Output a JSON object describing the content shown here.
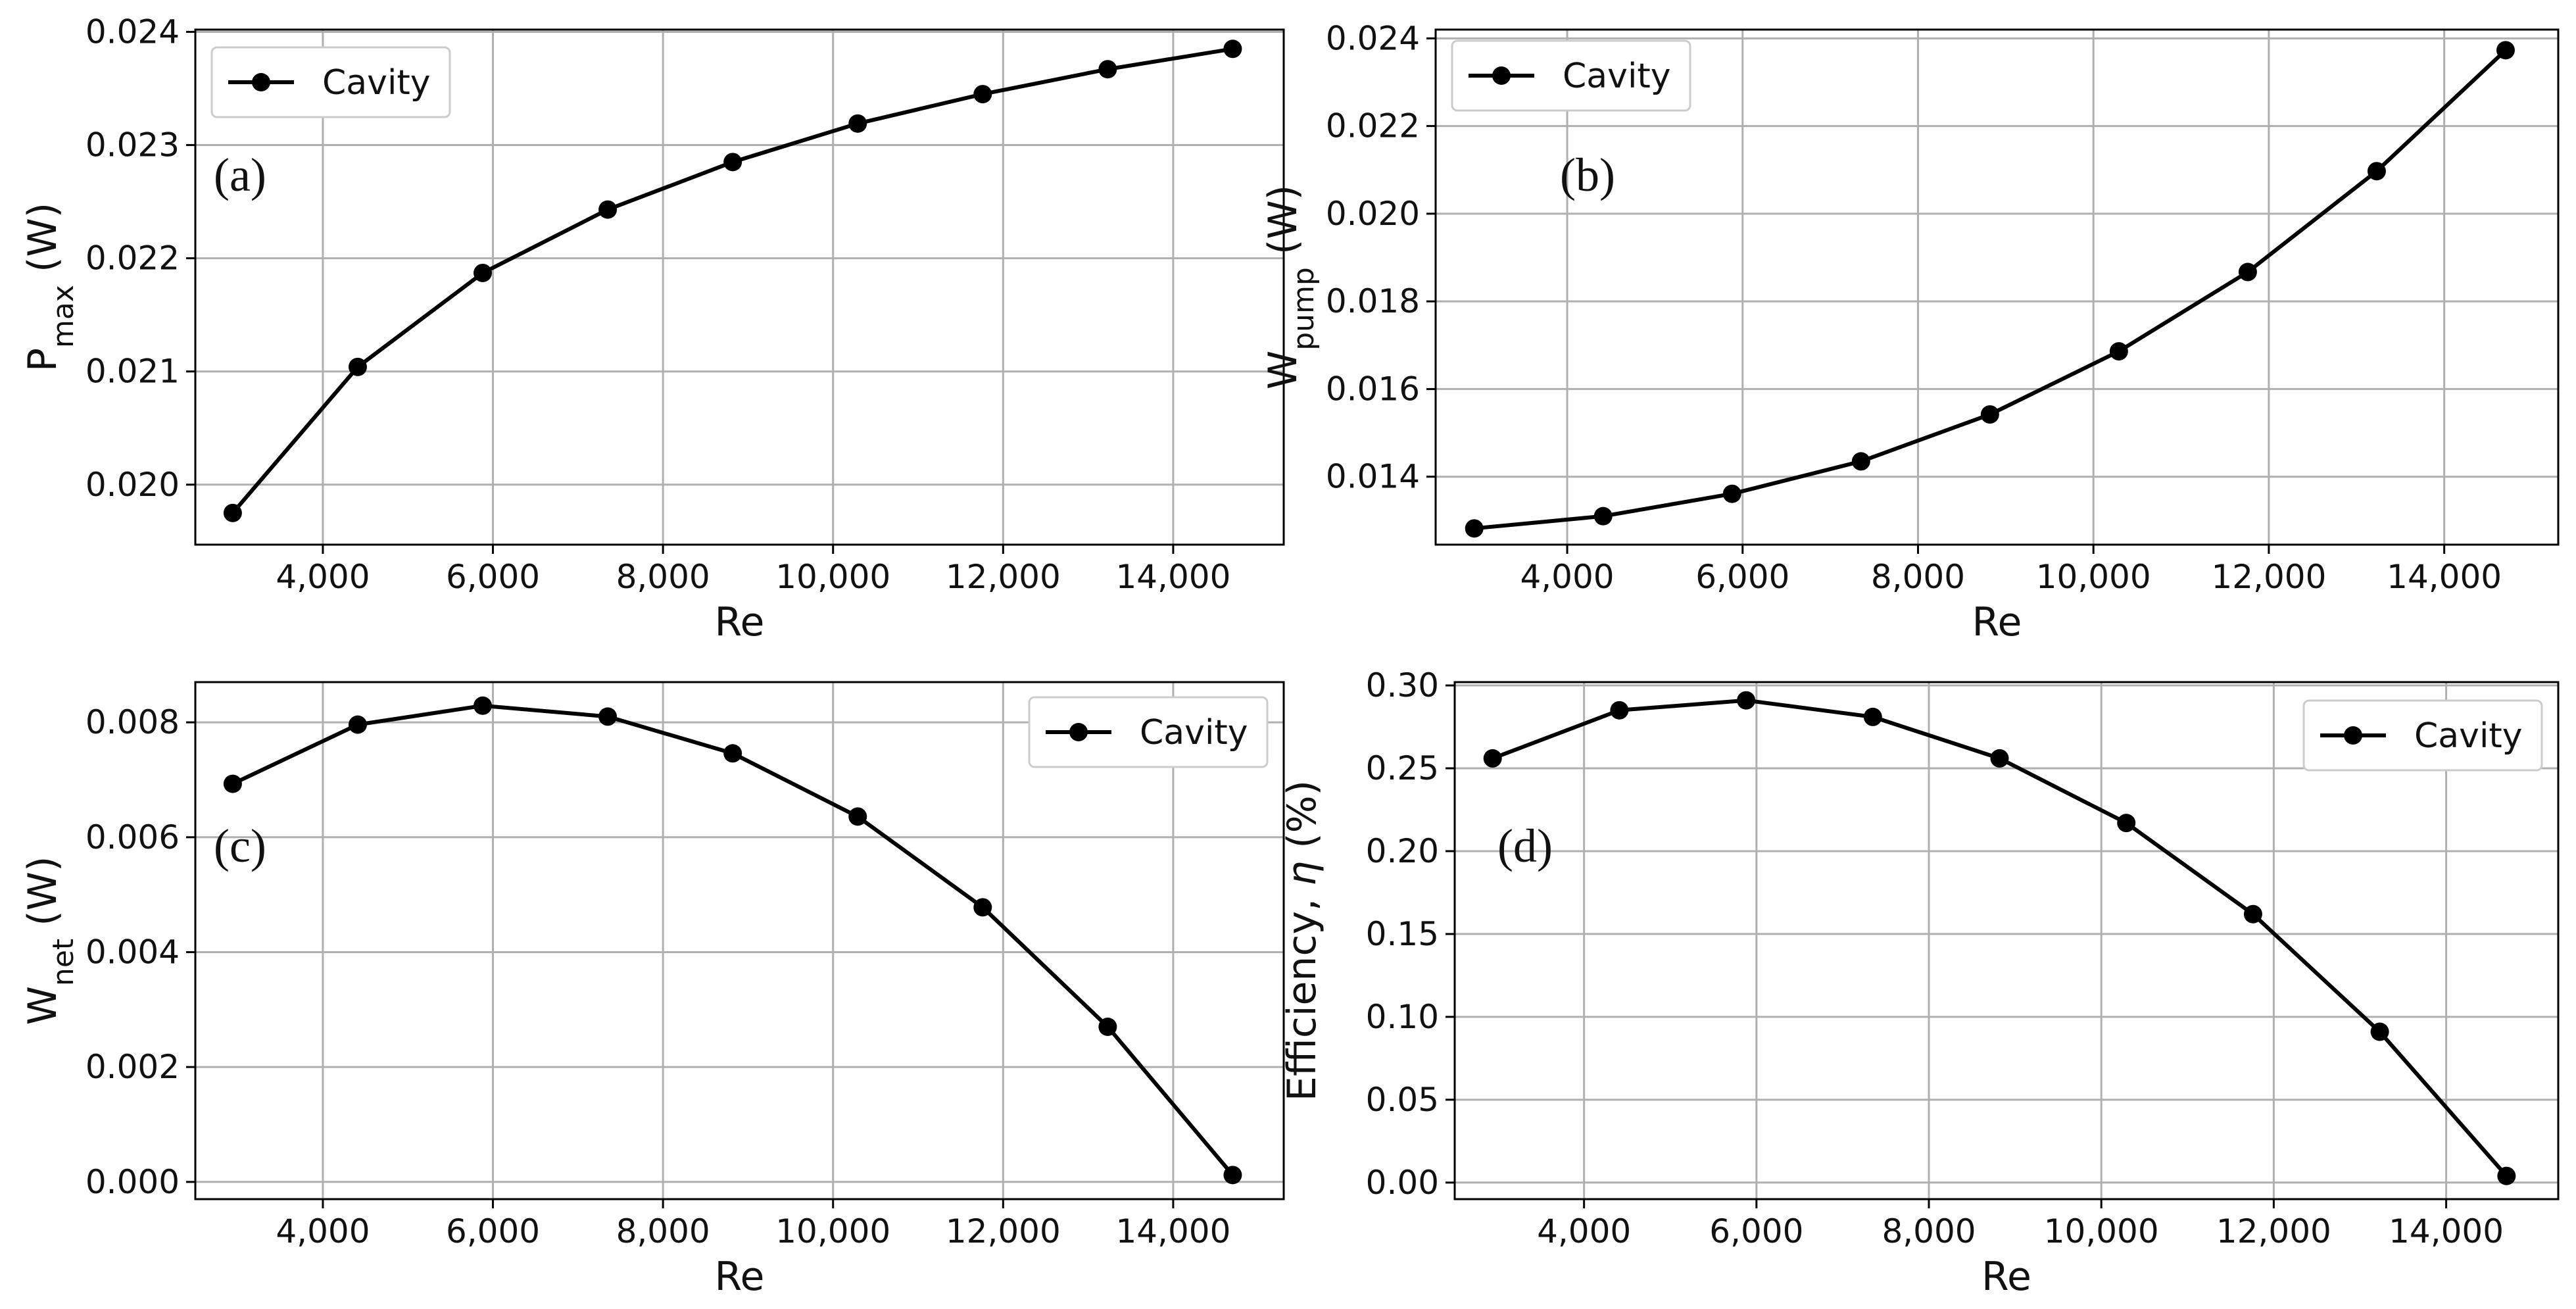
{
  "chart_data": [
    {
      "type": "line",
      "panel_label": "(a)",
      "title": "",
      "xlabel": "Re",
      "ylabel": "P",
      "ylabel_sub": "max",
      "ylabel_suffix": " (W)",
      "xlim": [
        2500,
        15300
      ],
      "ylim": [
        0.01947,
        0.02402
      ],
      "x_ticks": [
        4000,
        6000,
        8000,
        10000,
        12000,
        14000
      ],
      "x_tick_labels": [
        "4,000",
        "6,000",
        "8,000",
        "10,000",
        "12,000",
        "14,000"
      ],
      "y_ticks": [
        0.02,
        0.021,
        0.022,
        0.023,
        0.024
      ],
      "y_tick_labels": [
        "0.020",
        "0.021",
        "0.022",
        "0.023",
        "0.024"
      ],
      "grid": true,
      "legend_position": "top-left",
      "series": [
        {
          "name": "Cavity",
          "color": "#000000",
          "x": [
            2940,
            4410,
            5880,
            7350,
            8820,
            10290,
            11760,
            13230,
            14700
          ],
          "y": [
            0.01975,
            0.02104,
            0.02187,
            0.02243,
            0.02285,
            0.02319,
            0.02345,
            0.02367,
            0.02385
          ]
        }
      ]
    },
    {
      "type": "line",
      "panel_label": "(b)",
      "title": "",
      "xlabel": "Re",
      "ylabel": "W",
      "ylabel_sub": "pump",
      "ylabel_suffix": " (W)",
      "xlim": [
        2500,
        15300
      ],
      "ylim": [
        0.01245,
        0.0242
      ],
      "x_ticks": [
        4000,
        6000,
        8000,
        10000,
        12000,
        14000
      ],
      "x_tick_labels": [
        "4,000",
        "6,000",
        "8,000",
        "10,000",
        "12,000",
        "14,000"
      ],
      "y_ticks": [
        0.014,
        0.016,
        0.018,
        0.02,
        0.022,
        0.024
      ],
      "y_tick_labels": [
        "0.014",
        "0.016",
        "0.018",
        "0.020",
        "0.022",
        "0.024"
      ],
      "grid": true,
      "legend_position": "top-left",
      "series": [
        {
          "name": "Cavity",
          "color": "#000000",
          "x": [
            2940,
            4410,
            5880,
            7350,
            8820,
            10290,
            11760,
            13230,
            14700
          ],
          "y": [
            0.01282,
            0.0131,
            0.01361,
            0.01435,
            0.01542,
            0.01686,
            0.01867,
            0.02097,
            0.02373
          ]
        }
      ]
    },
    {
      "type": "line",
      "panel_label": "(c)",
      "title": "",
      "xlabel": "Re",
      "ylabel": "W",
      "ylabel_sub": "net",
      "ylabel_suffix": " (W)",
      "xlim": [
        2500,
        15300
      ],
      "ylim": [
        -0.0003,
        0.0087
      ],
      "x_ticks": [
        4000,
        6000,
        8000,
        10000,
        12000,
        14000
      ],
      "x_tick_labels": [
        "4,000",
        "6,000",
        "8,000",
        "10,000",
        "12,000",
        "14,000"
      ],
      "y_ticks": [
        0.0,
        0.002,
        0.004,
        0.006,
        0.008
      ],
      "y_tick_labels": [
        "0.000",
        "0.002",
        "0.004",
        "0.006",
        "0.008"
      ],
      "grid": true,
      "legend_position": "top-right",
      "series": [
        {
          "name": "Cavity",
          "color": "#000000",
          "x": [
            2940,
            4410,
            5880,
            7350,
            8820,
            10290,
            11760,
            13230,
            14700
          ],
          "y": [
            0.00693,
            0.00796,
            0.00829,
            0.0081,
            0.00746,
            0.00636,
            0.00478,
            0.0027,
            0.00012
          ]
        }
      ]
    },
    {
      "type": "line",
      "panel_label": "(d)",
      "title": "",
      "xlabel": "Re",
      "ylabel": "Efficiency, ",
      "ylabel_sub": "",
      "ylabel_italic": "η",
      "ylabel_suffix": " (%)",
      "xlim": [
        2500,
        15300
      ],
      "ylim": [
        -0.01,
        0.302
      ],
      "x_ticks": [
        4000,
        6000,
        8000,
        10000,
        12000,
        14000
      ],
      "x_tick_labels": [
        "4,000",
        "6,000",
        "8,000",
        "10,000",
        "12,000",
        "14,000"
      ],
      "y_ticks": [
        0.0,
        0.05,
        0.1,
        0.15,
        0.2,
        0.25,
        0.3
      ],
      "y_tick_labels": [
        "0.00",
        "0.05",
        "0.10",
        "0.15",
        "0.20",
        "0.25",
        "0.30"
      ],
      "grid": true,
      "legend_position": "top-right",
      "series": [
        {
          "name": "Cavity",
          "color": "#000000",
          "x": [
            2940,
            4410,
            5880,
            7350,
            8820,
            10290,
            11760,
            13230,
            14700
          ],
          "y": [
            0.256,
            0.285,
            0.291,
            0.281,
            0.256,
            0.217,
            0.162,
            0.091,
            0.004
          ]
        }
      ]
    }
  ]
}
